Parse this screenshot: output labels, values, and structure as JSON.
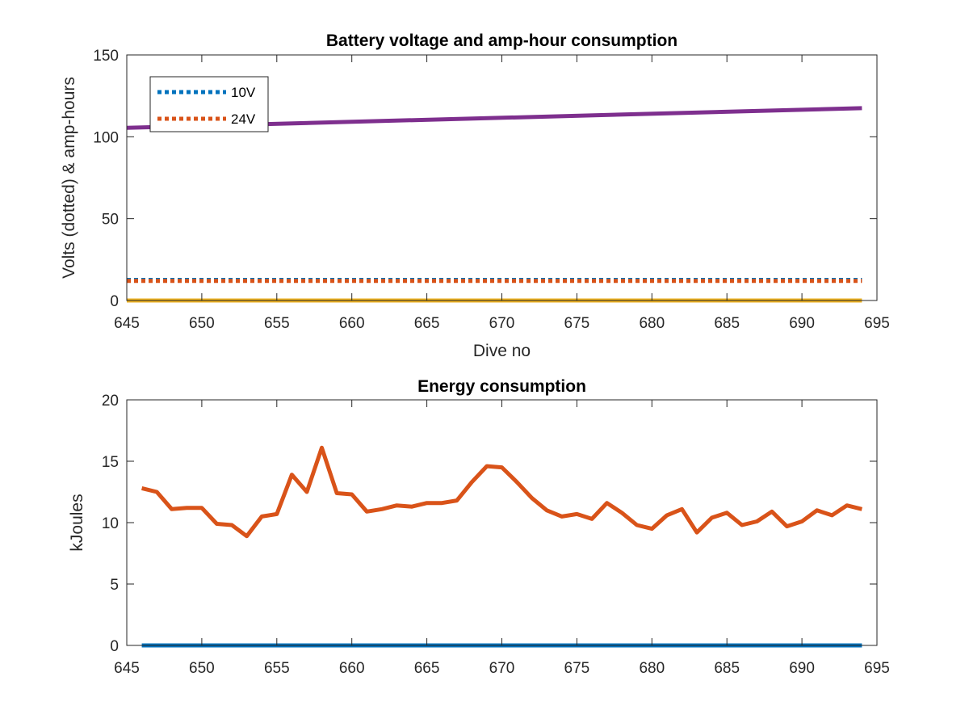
{
  "chart_data": [
    {
      "type": "line",
      "title": "Battery voltage and amp-hour consumption",
      "xlabel": "Dive no",
      "ylabel": "Volts (dotted) & amp-hours",
      "xlim": [
        645,
        695
      ],
      "ylim": [
        0,
        150
      ],
      "xticks": [
        "645",
        "650",
        "655",
        "660",
        "665",
        "670",
        "675",
        "680",
        "685",
        "690",
        "695"
      ],
      "yticks": [
        "0",
        "50",
        "100",
        "150"
      ],
      "grid": false,
      "legend": {
        "position": "top-left",
        "entries": [
          "10V",
          "24V"
        ]
      },
      "series": [
        {
          "name": "10V",
          "color": "#0072BD",
          "style": "dotted",
          "x": [
            645,
            650,
            655,
            660,
            665,
            670,
            675,
            680,
            685,
            690,
            694
          ],
          "y": [
            12.6,
            12.6,
            12.6,
            12.6,
            12.6,
            12.6,
            12.6,
            12.6,
            12.6,
            12.6,
            12.6
          ]
        },
        {
          "name": "24V",
          "color": "#D95319",
          "style": "dotted",
          "x": [
            645,
            650,
            655,
            660,
            665,
            670,
            675,
            680,
            685,
            690,
            694
          ],
          "y": [
            12.0,
            12.0,
            12.0,
            12.0,
            12.0,
            12.0,
            12.0,
            12.0,
            12.0,
            12.0,
            12.0
          ]
        },
        {
          "color": "#7E2F8E",
          "style": "solid",
          "x": [
            645,
            694
          ],
          "y": [
            105.5,
            117.5
          ]
        },
        {
          "color": "#EDB120",
          "style": "solid",
          "x": [
            645,
            694
          ],
          "y": [
            0,
            0
          ]
        }
      ]
    },
    {
      "type": "line",
      "title": "Energy consumption",
      "xlabel": "",
      "ylabel": "kJoules",
      "xlim": [
        645,
        695
      ],
      "ylim": [
        0,
        20
      ],
      "xticks": [
        "645",
        "650",
        "655",
        "660",
        "665",
        "670",
        "675",
        "680",
        "685",
        "690",
        "695"
      ],
      "yticks": [
        "0",
        "5",
        "10",
        "15",
        "20"
      ],
      "grid": false,
      "series": [
        {
          "color": "#D95319",
          "style": "solid",
          "x": [
            646,
            647,
            648,
            649,
            650,
            651,
            652,
            653,
            654,
            655,
            656,
            657,
            658,
            659,
            660,
            661,
            662,
            663,
            664,
            665,
            666,
            667,
            668,
            669,
            670,
            671,
            672,
            673,
            674,
            675,
            676,
            677,
            678,
            679,
            680,
            681,
            682,
            683,
            684,
            685,
            686,
            687,
            688,
            689,
            690,
            691,
            692,
            693,
            694
          ],
          "y": [
            12.8,
            12.5,
            11.1,
            11.2,
            11.2,
            9.9,
            9.8,
            8.9,
            10.5,
            10.7,
            13.9,
            12.5,
            16.1,
            12.4,
            12.3,
            10.9,
            11.1,
            11.4,
            11.3,
            11.6,
            11.6,
            11.8,
            13.3,
            14.6,
            14.5,
            13.3,
            12.0,
            11.0,
            10.5,
            10.7,
            10.3,
            11.6,
            10.8,
            9.8,
            9.5,
            10.6,
            11.1,
            9.2,
            10.4,
            10.8,
            9.8,
            10.1,
            10.9,
            9.7,
            10.1,
            11.0,
            10.6,
            11.4,
            11.1
          ]
        },
        {
          "color": "#0072BD",
          "style": "solid",
          "x": [
            646,
            694
          ],
          "y": [
            0,
            0
          ]
        }
      ]
    }
  ]
}
